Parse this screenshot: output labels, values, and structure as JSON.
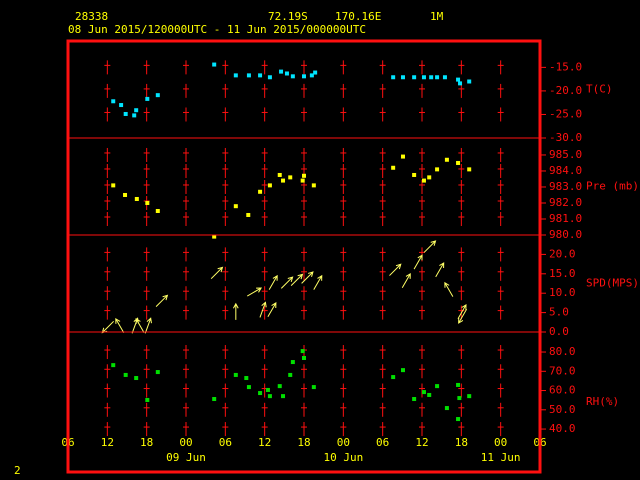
{
  "header": {
    "station": "28338",
    "lat": "72.19S",
    "lon": "170.16E",
    "level": "1M",
    "period": "08 Jun 2015/120000UTC - 11 Jun 2015/000000UTC",
    "page": "2"
  },
  "x_axis": {
    "xlim": [
      0,
      72
    ],
    "xticks": [
      {
        "value": 0,
        "label": "06"
      },
      {
        "value": 6,
        "label": "12"
      },
      {
        "value": 12,
        "label": "18"
      },
      {
        "value": 18,
        "label": "00"
      },
      {
        "value": 24,
        "label": "06"
      },
      {
        "value": 30,
        "label": "12"
      },
      {
        "value": 36,
        "label": "18"
      },
      {
        "value": 42,
        "label": "00"
      },
      {
        "value": 48,
        "label": "06"
      },
      {
        "value": 54,
        "label": "12"
      },
      {
        "value": 60,
        "label": "18"
      },
      {
        "value": 66,
        "label": "00"
      },
      {
        "value": 72,
        "label": "06"
      }
    ],
    "date_labels": [
      {
        "value": 18,
        "label": "09 Jun"
      },
      {
        "value": 42,
        "label": "10 Jun"
      },
      {
        "value": 66,
        "label": "11 Jun"
      }
    ]
  },
  "chart_data": [
    {
      "type": "scatter",
      "ylabel": "T(C)",
      "color": "#00e5ff",
      "ylim": [
        -30,
        -9.4
      ],
      "yticks": [
        {
          "value": -30,
          "label": "-30.0"
        },
        {
          "value": -25,
          "label": "-25.0"
        },
        {
          "value": -20,
          "label": "-20.0"
        },
        {
          "value": -15,
          "label": "-15.0"
        }
      ],
      "x": [
        6.9,
        8.1,
        8.8,
        10.1,
        10.4,
        12.1,
        13.7,
        22.3,
        25.6,
        27.6,
        29.3,
        30.8,
        32.5,
        33.4,
        34.3,
        36.0,
        37.2,
        37.7,
        49.6,
        51.1,
        52.8,
        54.3,
        55.4,
        56.3,
        57.5,
        59.5,
        59.8,
        61.2
      ],
      "values": [
        -22.2,
        -23.0,
        -24.9,
        -25.2,
        -24.1,
        -21.7,
        -20.9,
        -14.4,
        -16.7,
        -16.7,
        -16.7,
        -17.1,
        -15.9,
        -16.3,
        -16.9,
        -16.9,
        -16.7,
        -16.1,
        -17.1,
        -17.1,
        -17.1,
        -17.1,
        -17.1,
        -17.1,
        -17.1,
        -17.6,
        -18.4,
        -18.0
      ]
    },
    {
      "type": "scatter",
      "ylabel": "Pre (mb)",
      "color": "#ffff00",
      "ylim": [
        980,
        986.06
      ],
      "yticks": [
        {
          "value": 980,
          "label": "980.0"
        },
        {
          "value": 981,
          "label": "981.0"
        },
        {
          "value": 982,
          "label": "982.0"
        },
        {
          "value": 983,
          "label": "983.0"
        },
        {
          "value": 984,
          "label": "984.0"
        },
        {
          "value": 985,
          "label": "985.0"
        }
      ],
      "x": [
        6.9,
        8.7,
        10.5,
        12.1,
        13.7,
        22.3,
        25.6,
        27.5,
        29.3,
        30.8,
        32.3,
        32.8,
        33.9,
        35.8,
        36.0,
        37.5,
        49.6,
        51.1,
        52.8,
        54.3,
        55.1,
        56.3,
        57.8,
        59.5,
        61.2
      ],
      "values": [
        983.1,
        982.5,
        982.25,
        982.0,
        981.5,
        979.9,
        981.8,
        981.25,
        982.7,
        983.1,
        983.75,
        983.4,
        983.6,
        983.4,
        983.7,
        983.1,
        984.2,
        984.9,
        983.75,
        983.4,
        983.6,
        984.1,
        984.7,
        984.5,
        984.1
      ]
    },
    {
      "type": "quiver",
      "ylabel": "SPD(MPS)",
      "color": "#ffff66",
      "ylim": [
        0,
        25
      ],
      "yticks": [
        {
          "value": 0,
          "label": "0.0"
        },
        {
          "value": 5,
          "label": "5.0"
        },
        {
          "value": 10,
          "label": "10.0"
        },
        {
          "value": 15,
          "label": "15.0"
        },
        {
          "value": 20,
          "label": "20.0"
        }
      ],
      "x": [
        6.1,
        7.9,
        10.2,
        11.0,
        12.2,
        14.3,
        22.7,
        25.6,
        28.4,
        29.7,
        31.1,
        31.3,
        33.4,
        34.9,
        36.5,
        38.1,
        49.9,
        51.6,
        53.4,
        55.2,
        56.7,
        58.1,
        60.1,
        60.2
      ],
      "values": [
        1.3,
        1.6,
        1.6,
        1.6,
        1.6,
        8.0,
        15.2,
        5.2,
        10.3,
        5.7,
        5.7,
        12.7,
        12.7,
        13.4,
        14.0,
        12.7,
        16.0,
        13.2,
        18.0,
        22.0,
        16.0,
        10.9,
        5.2,
        4.1
      ],
      "direction": [
        225,
        330,
        20,
        330,
        20,
        45,
        45,
        0,
        60,
        20,
        30,
        30,
        45,
        45,
        45,
        30,
        45,
        30,
        30,
        45,
        30,
        330,
        30,
        210
      ]
    },
    {
      "type": "scatter",
      "ylabel": "RH(%)",
      "color": "#00e000",
      "ylim": [
        17.7,
        90.4
      ],
      "yticks": [
        {
          "value": 40,
          "label": "40.0"
        },
        {
          "value": 50,
          "label": "50.0"
        },
        {
          "value": 60,
          "label": "60.0"
        },
        {
          "value": 70,
          "label": "70.0"
        },
        {
          "value": 80,
          "label": "80.0"
        }
      ],
      "x": [
        6.9,
        8.8,
        10.4,
        12.1,
        13.7,
        22.3,
        25.6,
        27.2,
        27.6,
        29.3,
        30.5,
        30.8,
        32.3,
        32.8,
        33.9,
        34.3,
        35.8,
        36.0,
        37.5,
        49.6,
        51.1,
        52.8,
        54.3,
        55.1,
        56.3,
        57.8,
        59.5,
        59.5,
        59.7,
        61.2
      ],
      "values": [
        73.2,
        68.1,
        66.5,
        55.1,
        69.6,
        55.6,
        68.1,
        66.5,
        61.8,
        58.7,
        60.3,
        57.1,
        62.3,
        57.1,
        68.1,
        74.8,
        80.5,
        76.9,
        61.8,
        67.0,
        70.6,
        55.6,
        59.2,
        57.7,
        62.3,
        50.9,
        62.9,
        45.2,
        56.1,
        57.1
      ]
    }
  ]
}
